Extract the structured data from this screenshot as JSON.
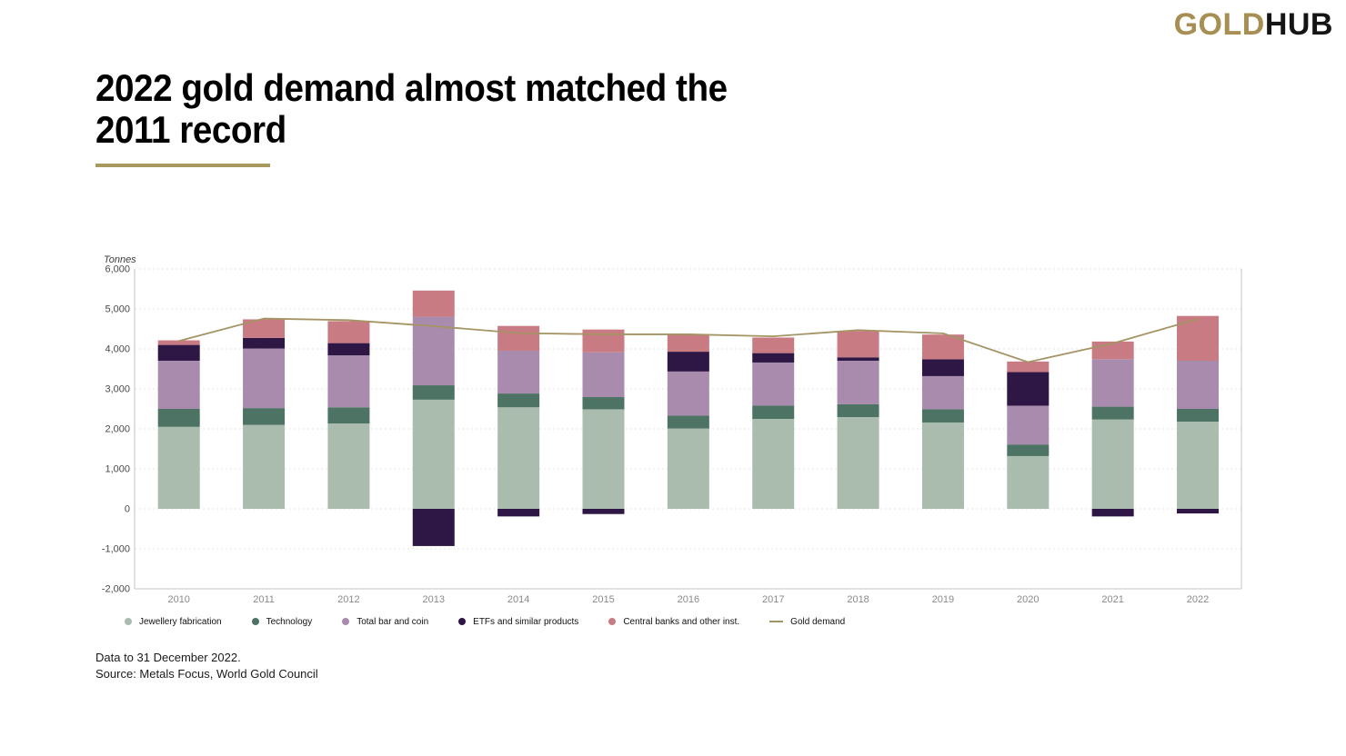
{
  "logo": {
    "gold": "GOLD",
    "hub": "HUB"
  },
  "title": {
    "line1": "2022 gold demand almost matched the",
    "line2": "2011 record"
  },
  "chart_data": {
    "type": "stacked-bar-line",
    "unit_label": "Tonnes",
    "categories": [
      "2010",
      "2011",
      "2012",
      "2013",
      "2014",
      "2015",
      "2016",
      "2017",
      "2018",
      "2019",
      "2020",
      "2021",
      "2022"
    ],
    "series": [
      {
        "name": "Jewellery fabrication",
        "color": "#A9BCAE",
        "values": [
          2050,
          2100,
          2135,
          2730,
          2540,
          2490,
          2010,
          2250,
          2295,
          2160,
          1320,
          2235,
          2180
        ]
      },
      {
        "name": "Technology",
        "color": "#4C7363",
        "values": [
          450,
          420,
          405,
          360,
          345,
          305,
          320,
          330,
          320,
          330,
          290,
          320,
          320
        ]
      },
      {
        "name": "Total bar and coin",
        "color": "#A98CAD",
        "values": [
          1205,
          1490,
          1300,
          1715,
          1070,
          1120,
          1105,
          1080,
          1090,
          830,
          970,
          1190,
          1205
        ]
      },
      {
        "name": "ETFs and similar products",
        "color": "#2E1745",
        "values": [
          395,
          265,
          305,
          -930,
          -190,
          -130,
          495,
          235,
          85,
          420,
          840,
          -190,
          -115
        ]
      },
      {
        "name": "Central banks and other inst.",
        "color": "#C87B82",
        "values": [
          115,
          465,
          550,
          655,
          620,
          570,
          425,
          390,
          655,
          620,
          265,
          440,
          1120
        ]
      }
    ],
    "line_series": {
      "name": "Gold demand",
      "color": "#A59465",
      "values": [
        4200,
        4760,
        4720,
        4570,
        4395,
        4365,
        4365,
        4315,
        4470,
        4390,
        3670,
        4140,
        4750
      ]
    },
    "ylim": [
      -2000,
      6000
    ],
    "ytick_interval": 1000,
    "ytick_labels": [
      "6,000",
      "5,000",
      "4,000",
      "3,000",
      "2,000",
      "1,000",
      "0",
      "-1,000",
      "-2,000"
    ],
    "grid": "dashed horizontal",
    "legend_position": "bottom"
  },
  "footer": {
    "line1": "Data to 31 December 2022.",
    "line2": "Source: Metals Focus, World Gold Council"
  }
}
